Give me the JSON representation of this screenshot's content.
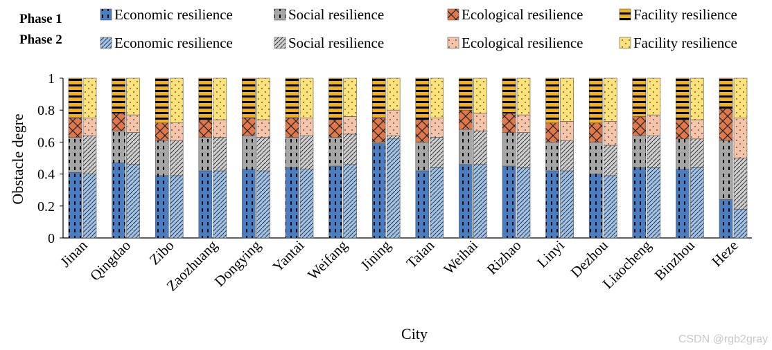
{
  "chart_data": {
    "type": "bar",
    "stacked": true,
    "grouped": true,
    "xlabel": "City",
    "ylabel": "Obstacle degre",
    "ylim": [
      0,
      1
    ],
    "yticks": [
      "0",
      "0.2",
      "0.4",
      "0.6",
      "0.8",
      "1"
    ],
    "categories": [
      "Jinan",
      "Qingdao",
      "Zibo",
      "Zaozhuang",
      "Dongying",
      "Yantai",
      "Weifang",
      "Jining",
      "Taian",
      "Weihai",
      "Rizhao",
      "Linyi",
      "Dezhou",
      "Liaocheng",
      "Binzhou",
      "Heze"
    ],
    "groups": [
      {
        "name": "Phase 1",
        "series": [
          {
            "name": "Economic resilience",
            "color": "#4a7ec2",
            "pattern": "dashes",
            "values": [
              0.41,
              0.47,
              0.39,
              0.42,
              0.43,
              0.44,
              0.45,
              0.59,
              0.42,
              0.46,
              0.45,
              0.42,
              0.4,
              0.44,
              0.43,
              0.24
            ]
          },
          {
            "name": "Social resilience",
            "color": "#a6a6a6",
            "pattern": "dashes",
            "values": [
              0.22,
              0.2,
              0.22,
              0.21,
              0.21,
              0.19,
              0.18,
              0.01,
              0.18,
              0.22,
              0.21,
              0.18,
              0.2,
              0.2,
              0.19,
              0.37
            ]
          },
          {
            "name": "Ecological resilience",
            "color": "#e0784a",
            "pattern": "crosshatch",
            "values": [
              0.12,
              0.11,
              0.11,
              0.11,
              0.11,
              0.12,
              0.11,
              0.15,
              0.14,
              0.12,
              0.12,
              0.12,
              0.12,
              0.12,
              0.12,
              0.2
            ]
          },
          {
            "name": "Facility resilience",
            "color": "#f2b21a",
            "pattern": "stripes",
            "values": [
              0.25,
              0.22,
              0.28,
              0.26,
              0.25,
              0.25,
              0.26,
              0.25,
              0.26,
              0.2,
              0.22,
              0.28,
              0.28,
              0.24,
              0.26,
              0.19
            ]
          }
        ]
      },
      {
        "name": "Phase 2",
        "series": [
          {
            "name": "Economic resilience",
            "color": "#9fc4ee",
            "pattern": "hatch",
            "values": [
              0.4,
              0.46,
              0.39,
              0.42,
              0.42,
              0.43,
              0.46,
              0.62,
              0.44,
              0.46,
              0.44,
              0.42,
              0.39,
              0.44,
              0.44,
              0.18
            ]
          },
          {
            "name": "Social resilience",
            "color": "#d0d0d0",
            "pattern": "hatch",
            "values": [
              0.24,
              0.2,
              0.22,
              0.21,
              0.21,
              0.21,
              0.19,
              0.02,
              0.19,
              0.21,
              0.22,
              0.19,
              0.19,
              0.2,
              0.18,
              0.32
            ]
          },
          {
            "name": "Ecological resilience",
            "color": "#f6c4a8",
            "pattern": "dots",
            "values": [
              0.11,
              0.11,
              0.11,
              0.11,
              0.11,
              0.11,
              0.11,
              0.16,
              0.12,
              0.11,
              0.11,
              0.12,
              0.15,
              0.13,
              0.12,
              0.25
            ]
          },
          {
            "name": "Facility resilience",
            "color": "#fde27a",
            "pattern": "dots",
            "values": [
              0.25,
              0.23,
              0.28,
              0.26,
              0.26,
              0.25,
              0.24,
              0.2,
              0.25,
              0.22,
              0.23,
              0.27,
              0.27,
              0.23,
              0.26,
              0.25
            ]
          }
        ]
      }
    ]
  },
  "watermark": "CSDN @rgb2gray"
}
